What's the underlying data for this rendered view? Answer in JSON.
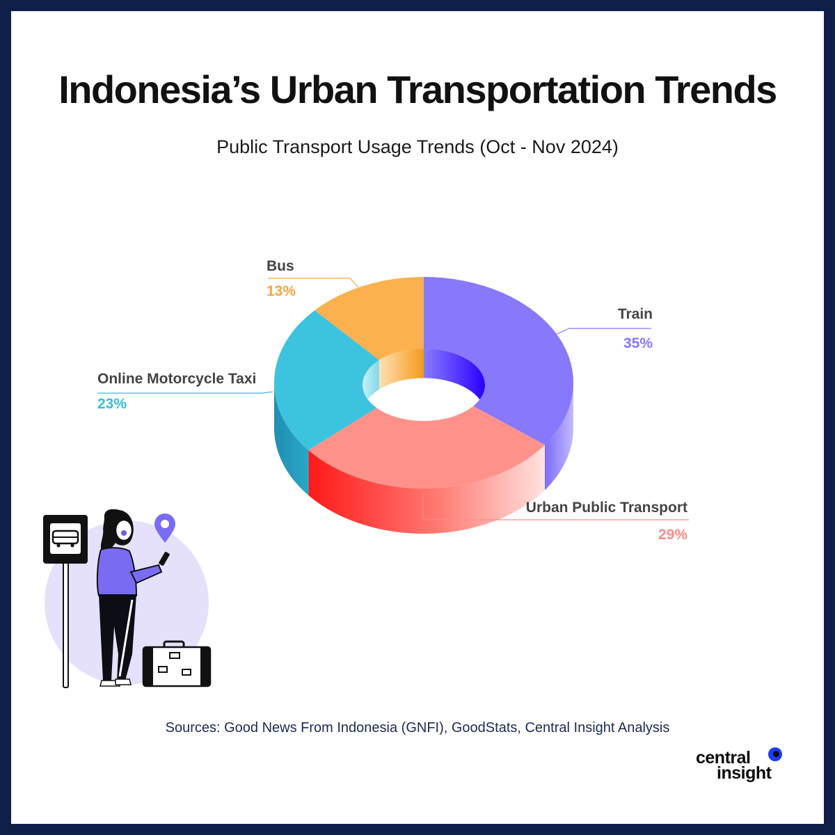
{
  "title": "Indonesia’s Urban Transportation Trends",
  "subtitle": "Public Transport Usage Trends (Oct - Nov 2024)",
  "chart_data": {
    "type": "pie",
    "title": "Public Transport Usage Trends (Oct - Nov 2024)",
    "unit": "%",
    "slices": [
      {
        "name": "Train",
        "value": 35,
        "value_label": "35%",
        "color": "#8878fc",
        "label_color": "#8878fc"
      },
      {
        "name": "Urban Public Transport",
        "value": 29,
        "value_label": "29%",
        "color": "#fe928b",
        "label_color": "#f98c86"
      },
      {
        "name": "Online Motorcycle Taxi",
        "value": 23,
        "value_label": "23%",
        "color": "#3cc3de",
        "label_color": "#35bfdb"
      },
      {
        "name": "Bus",
        "value": 13,
        "value_label": "13%",
        "color": "#fdb04e",
        "label_color": "#f9a43e"
      }
    ]
  },
  "illustration": {
    "icons": [
      "bus-stop-sign-icon",
      "location-pin-icon",
      "woman-with-phone-icon",
      "suitcase-icon"
    ]
  },
  "sources": "Sources: Good News From Indonesia (GNFI), GoodStats, Central Insight Analysis",
  "logo": {
    "line1": "central",
    "line2": "insight"
  },
  "colors": {
    "border": "#0f1f4a",
    "background": "#ffffff",
    "illustration_circle": "#e5e1fb",
    "accent_purple": "#7a6cf2"
  }
}
